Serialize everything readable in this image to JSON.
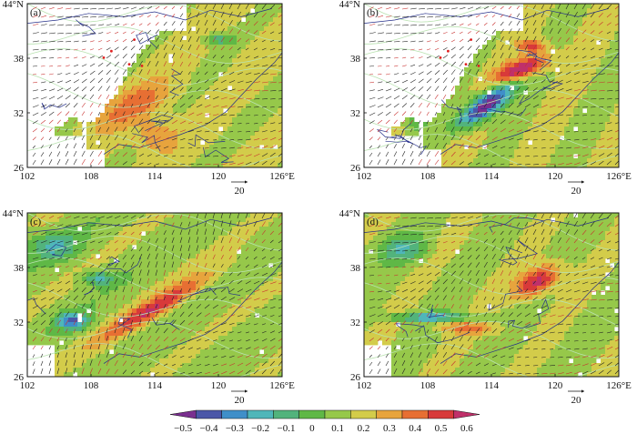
{
  "figure": {
    "panels": [
      {
        "id": "a",
        "label": "(a)",
        "field": "weak"
      },
      {
        "id": "b",
        "label": "(b)",
        "field": "strong-sw"
      },
      {
        "id": "c",
        "label": "(c)",
        "field": "band-sw-ne"
      },
      {
        "id": "d",
        "label": "(d)",
        "field": "band-center-ne"
      }
    ],
    "x_ticks": [
      "102",
      "108",
      "114",
      "120",
      "126°E"
    ],
    "y_ticks": [
      "44°N",
      "38",
      "32",
      "26"
    ],
    "vector_reference": "20",
    "colorbar": {
      "tick_labels": [
        "−0.5",
        "−0.4",
        "−0.3",
        "−0.2",
        "−0.1",
        "0",
        "0.1",
        "0.2",
        "0.3",
        "0.4",
        "0.5",
        "0.6"
      ],
      "colors": [
        "#7a2f8f",
        "#4b57a8",
        "#3f8fc9",
        "#4fb6b9",
        "#52b37c",
        "#5fb846",
        "#96c84a",
        "#d3cc4a",
        "#e7a43d",
        "#e76f33",
        "#d83a3a",
        "#c0306a"
      ]
    }
  },
  "chart_data": {
    "type": "heatmap",
    "title": "",
    "xlabel": "",
    "ylabel": "",
    "x_range": [
      102,
      126
    ],
    "y_range": [
      26,
      44
    ],
    "x_ticks": [
      102,
      108,
      114,
      120,
      126
    ],
    "y_ticks": [
      26,
      32,
      38,
      44
    ],
    "colorbar_range": [
      -0.5,
      0.6
    ],
    "colorbar_levels": [
      -0.5,
      -0.4,
      -0.3,
      -0.2,
      -0.1,
      0,
      0.1,
      0.2,
      0.3,
      0.4,
      0.5,
      0.6
    ],
    "overlay": "wind vectors",
    "reference_vector": 20,
    "panels": [
      "(a)",
      "(b)",
      "(c)",
      "(d)"
    ]
  }
}
